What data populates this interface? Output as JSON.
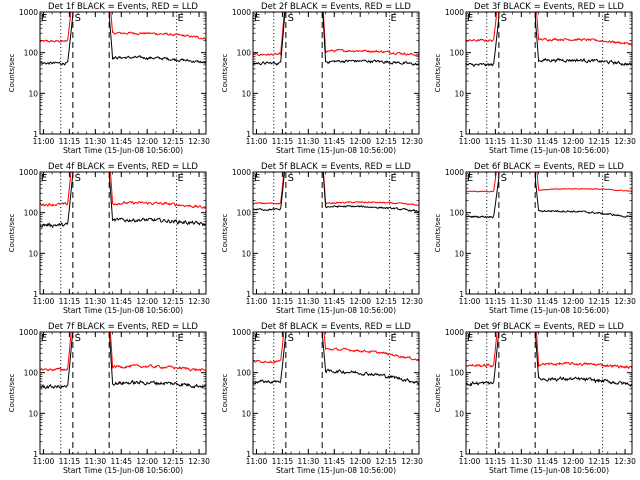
{
  "chart_data": {
    "type": "line",
    "x_unit": "time (HH:MM UT)",
    "y_scale": "log",
    "ylim": [
      1,
      1000
    ],
    "yticks": [
      "1",
      "10",
      "100",
      "1000"
    ],
    "xlim": [
      "10:58",
      "12:34"
    ],
    "xticks": [
      "11:00",
      "11:15",
      "11:30",
      "11:45",
      "12:00",
      "12:15",
      "12:30"
    ],
    "xlabel": "Start Time (15-Jun-08 10:56:00)",
    "ylabel": "Counts/sec",
    "markers": [
      "E",
      "S",
      "E"
    ],
    "marker_times": {
      "e1": "11:10",
      "s": "11:17",
      "s_end": "11:38",
      "e2": "12:17"
    },
    "panels": [
      {
        "title": "Det 1f BLACK = Events, RED = LLD",
        "series": [
          {
            "color": "#ff0000",
            "pre": 190,
            "post_start": 300,
            "post_end": 220,
            "noise": 0.05
          },
          {
            "color": "#000000",
            "pre": 55,
            "post_start": 75,
            "post_end": 55,
            "noise": 0.06
          }
        ]
      },
      {
        "title": "Det 2f BLACK = Events, RED = LLD",
        "series": [
          {
            "color": "#ff0000",
            "pre": 90,
            "post_start": 110,
            "post_end": 85,
            "noise": 0.05
          },
          {
            "color": "#000000",
            "pre": 55,
            "post_start": 60,
            "post_end": 50,
            "noise": 0.06
          }
        ]
      },
      {
        "title": "Det 3f BLACK = Events, RED = LLD",
        "series": [
          {
            "color": "#ff0000",
            "pre": 200,
            "post_start": 210,
            "post_end": 160,
            "noise": 0.05
          },
          {
            "color": "#000000",
            "pre": 50,
            "post_start": 65,
            "post_end": 50,
            "noise": 0.07
          }
        ]
      },
      {
        "title": "Det 4f BLACK = Events, RED = LLD",
        "series": [
          {
            "color": "#ff0000",
            "pre": 160,
            "post_start": 170,
            "post_end": 130,
            "noise": 0.06
          },
          {
            "color": "#000000",
            "pre": 50,
            "post_start": 65,
            "post_end": 50,
            "noise": 0.08
          }
        ]
      },
      {
        "title": "Det 5f BLACK = Events, RED = LLD",
        "series": [
          {
            "color": "#ff0000",
            "pre": 170,
            "post_start": 170,
            "post_end": 150,
            "noise": 0.03
          },
          {
            "color": "#000000",
            "pre": 120,
            "post_start": 140,
            "post_end": 105,
            "noise": 0.04
          }
        ]
      },
      {
        "title": "Det 6f BLACK = Events, RED = LLD",
        "series": [
          {
            "color": "#ff0000",
            "pre": 330,
            "post_start": 360,
            "post_end": 330,
            "noise": 0.02
          },
          {
            "color": "#000000",
            "pre": 80,
            "post_start": 110,
            "post_end": 75,
            "noise": 0.04
          }
        ]
      },
      {
        "title": "Det 7f BLACK = Events, RED = LLD",
        "series": [
          {
            "color": "#ff0000",
            "pre": 120,
            "post_start": 140,
            "post_end": 110,
            "noise": 0.06
          },
          {
            "color": "#000000",
            "pre": 45,
            "post_start": 55,
            "post_end": 45,
            "noise": 0.08
          }
        ]
      },
      {
        "title": "Det 8f BLACK = Events, RED = LLD",
        "series": [
          {
            "color": "#ff0000",
            "pre": 190,
            "post_start": 380,
            "post_end": 200,
            "noise": 0.05
          },
          {
            "color": "#000000",
            "pre": 60,
            "post_start": 110,
            "post_end": 55,
            "noise": 0.07
          }
        ]
      },
      {
        "title": "Det 9f BLACK = Events, RED = LLD",
        "series": [
          {
            "color": "#ff0000",
            "pre": 150,
            "post_start": 160,
            "post_end": 130,
            "noise": 0.06
          },
          {
            "color": "#000000",
            "pre": 55,
            "post_start": 70,
            "post_end": 50,
            "noise": 0.08
          }
        ]
      }
    ]
  }
}
